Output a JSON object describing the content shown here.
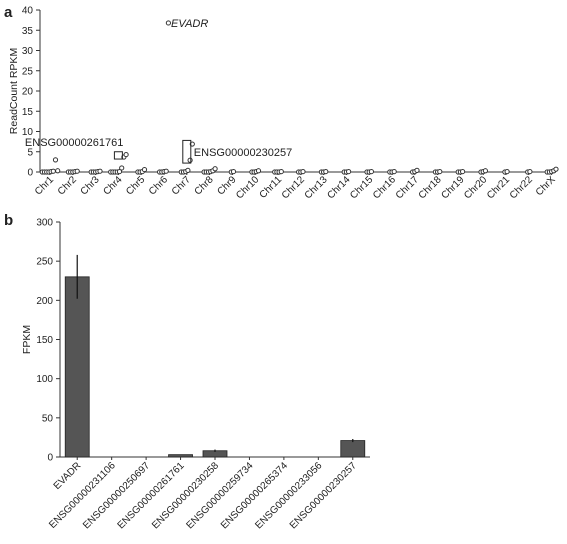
{
  "panels": {
    "a": {
      "letter": "a"
    },
    "b": {
      "letter": "b"
    }
  },
  "chart_data": [
    {
      "type": "scatter",
      "panel": "a",
      "ylabel": "ReadCount RPKM",
      "xlabel": "",
      "ylim": [
        0,
        40
      ],
      "yticks": [
        0,
        5,
        10,
        15,
        20,
        25,
        30,
        35,
        40
      ],
      "categories": [
        "Chr1",
        "Chr2",
        "Chr3",
        "Chr4",
        "Chr5",
        "Chr6",
        "Chr7",
        "Chr8",
        "Chr9",
        "Chr10",
        "Chr11",
        "Chr12",
        "Chr13",
        "Chr14",
        "Chr15",
        "Chr16",
        "Chr17",
        "Chr18",
        "Chr19",
        "Chr20",
        "Chr21",
        "Chr22",
        "ChrX"
      ],
      "marker_color": "#333333",
      "points": [
        {
          "chr": "Chr1",
          "values": [
            0,
            0,
            0,
            0,
            0.1,
            0.2,
            3.0,
            0.3
          ]
        },
        {
          "chr": "Chr2",
          "values": [
            0,
            0,
            0,
            0.1,
            0.2
          ]
        },
        {
          "chr": "Chr3",
          "values": [
            0,
            0,
            0,
            0.1,
            0.2
          ]
        },
        {
          "chr": "Chr4",
          "values": [
            0,
            0,
            0,
            0,
            0.1,
            1.0,
            3.7,
            4.3
          ]
        },
        {
          "chr": "Chr5",
          "values": [
            0,
            0,
            0.1,
            0.6
          ]
        },
        {
          "chr": "Chr6",
          "values": [
            0,
            0,
            0.1,
            0.2,
            36.8
          ]
        },
        {
          "chr": "Chr7",
          "values": [
            0,
            0,
            0.1,
            0.4,
            2.9,
            6.9
          ]
        },
        {
          "chr": "Chr8",
          "values": [
            0,
            0,
            0,
            0.1,
            0.3,
            0.8
          ]
        },
        {
          "chr": "Chr9",
          "values": [
            0,
            0.1
          ]
        },
        {
          "chr": "Chr10",
          "values": [
            0,
            0,
            0.1,
            0.3
          ]
        },
        {
          "chr": "Chr11",
          "values": [
            0,
            0,
            0,
            0.1
          ]
        },
        {
          "chr": "Chr12",
          "values": [
            0,
            0,
            0.1
          ]
        },
        {
          "chr": "Chr13",
          "values": [
            0,
            0,
            0.1
          ]
        },
        {
          "chr": "Chr14",
          "values": [
            0,
            0,
            0.1
          ]
        },
        {
          "chr": "Chr15",
          "values": [
            0,
            0,
            0.1
          ]
        },
        {
          "chr": "Chr16",
          "values": [
            0,
            0,
            0.1
          ]
        },
        {
          "chr": "Chr17",
          "values": [
            0,
            0.1,
            0.4
          ]
        },
        {
          "chr": "Chr18",
          "values": [
            0,
            0,
            0.1
          ]
        },
        {
          "chr": "Chr19",
          "values": [
            0,
            0,
            0.1
          ]
        },
        {
          "chr": "Chr20",
          "values": [
            0,
            0.1,
            0.3
          ]
        },
        {
          "chr": "Chr21",
          "values": [
            0,
            0.1
          ]
        },
        {
          "chr": "Chr22",
          "values": [
            0,
            0.1
          ]
        },
        {
          "chr": "ChrX",
          "values": [
            0,
            0,
            0.1,
            0.3,
            0.7
          ]
        }
      ],
      "annotations": [
        {
          "label": "EVADR",
          "chr": "Chr6",
          "value": 36.8,
          "italic": true
        },
        {
          "label": "ENSG00000261761",
          "chr": "Chr4",
          "value": 4.0,
          "boxed": [
            3.2,
            5.0
          ]
        },
        {
          "label": "ENSG00000230257",
          "chr": "Chr7",
          "value": 5.0,
          "boxed": [
            2.2,
            7.8
          ]
        }
      ]
    },
    {
      "type": "bar",
      "panel": "b",
      "ylabel": "FPKM",
      "xlabel": "",
      "ylim": [
        0,
        300
      ],
      "yticks": [
        0,
        50,
        100,
        150,
        200,
        250,
        300
      ],
      "categories": [
        "EVADR",
        "ENSG00000231106",
        "ENSG00000250697",
        "ENSG00000261761",
        "ENSG00000230258",
        "ENSG00000259734",
        "ENSG00000265374",
        "ENSG00000233056",
        "ENSG00000230257"
      ],
      "values": [
        230,
        0,
        0,
        3,
        8,
        0,
        0,
        0,
        21
      ],
      "errors": [
        28,
        0,
        0,
        0,
        1.5,
        0,
        0,
        0,
        2
      ],
      "bar_color": "#555555"
    }
  ]
}
